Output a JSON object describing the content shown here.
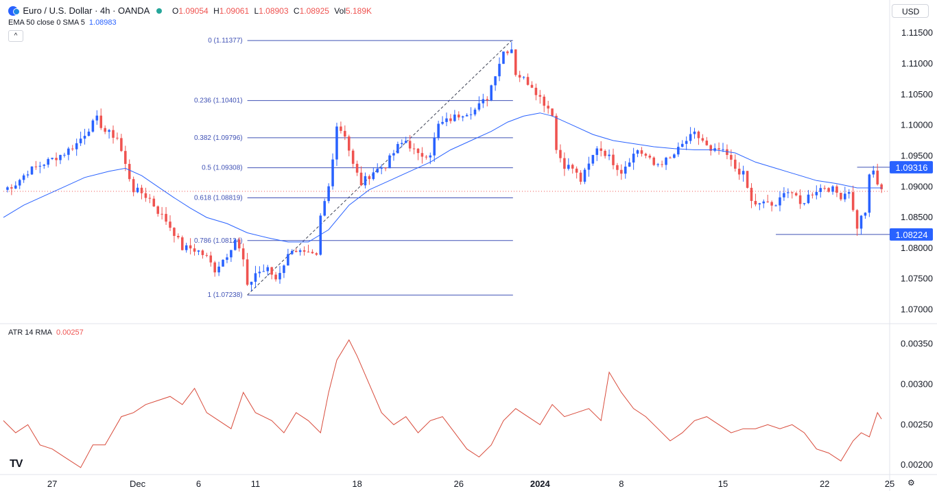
{
  "header": {
    "symbol_title": "Euro / U.S. Dollar · 4h · OANDA",
    "ohlc": [
      {
        "k": "O",
        "v": "1.09054"
      },
      {
        "k": "H",
        "v": "1.09061"
      },
      {
        "k": "L",
        "v": "1.08903"
      },
      {
        "k": "C",
        "v": "1.08925"
      },
      {
        "k": "Vol",
        "v": "5.189K"
      }
    ],
    "indicator_label": "EMA 50 close 0 SMA 5",
    "indicator_value": "1.08983",
    "collapse_glyph": "^",
    "currency": "USD"
  },
  "atr_panel": {
    "label": "ATR 14 RMA",
    "value": "0.00257"
  },
  "logo_text": "TV",
  "colors": {
    "up": "#2962ff",
    "down": "#ef5350",
    "ema": "#2962ff",
    "atr": "#d84a3a",
    "fib": "#3f51b5",
    "label_bg": "#2962ff"
  },
  "chart_data": {
    "type": "candlestick",
    "price_axis": {
      "range": [
        1.0685,
        1.1168
      ],
      "ticks": [
        "1.07000",
        "1.07500",
        "1.08000",
        "1.08500",
        "1.09000",
        "1.09500",
        "1.10000",
        "1.10500",
        "1.11000",
        "1.11500"
      ],
      "tick_values": [
        1.07,
        1.075,
        1.08,
        1.085,
        1.09,
        1.095,
        1.1,
        1.105,
        1.11,
        1.115
      ]
    },
    "time_axis": {
      "ticks": [
        "27",
        "Dec",
        "6",
        "11",
        "18",
        "26",
        "2024",
        "8",
        "15",
        "22",
        "25"
      ],
      "tick_index": [
        12,
        33,
        48,
        62,
        87,
        112,
        132,
        152,
        177,
        202,
        218
      ]
    },
    "candles": [],
    "close_path": [
      [
        0,
        1.0895
      ],
      [
        3,
        1.0905
      ],
      [
        6,
        1.0925
      ],
      [
        9,
        1.0935
      ],
      [
        12,
        1.0945
      ],
      [
        15,
        1.0955
      ],
      [
        18,
        1.097
      ],
      [
        21,
        1.0995
      ],
      [
        23,
        1.101
      ],
      [
        25,
        1.099
      ],
      [
        28,
        1.098
      ],
      [
        30,
        1.0935
      ],
      [
        32,
        1.0895
      ],
      [
        34,
        1.089
      ],
      [
        36,
        1.088
      ],
      [
        38,
        1.086
      ],
      [
        40,
        1.0845
      ],
      [
        42,
        1.0825
      ],
      [
        44,
        1.08
      ],
      [
        46,
        1.08
      ],
      [
        48,
        1.0795
      ],
      [
        50,
        1.0785
      ],
      [
        52,
        1.0765
      ],
      [
        55,
        1.079
      ],
      [
        57,
        1.0815
      ],
      [
        59,
        1.078
      ],
      [
        60,
        1.0735
      ],
      [
        62,
        1.076
      ],
      [
        65,
        1.0765
      ],
      [
        67,
        1.075
      ],
      [
        69,
        1.0775
      ],
      [
        71,
        1.08
      ],
      [
        74,
        1.079
      ],
      [
        77,
        1.0785
      ],
      [
        78,
        1.085
      ],
      [
        80,
        1.09
      ],
      [
        82,
        1.1
      ],
      [
        84,
        1.0985
      ],
      [
        86,
        1.0935
      ],
      [
        88,
        1.0905
      ],
      [
        91,
        1.0925
      ],
      [
        94,
        1.0935
      ],
      [
        97,
        1.0965
      ],
      [
        99,
        1.0975
      ],
      [
        102,
        1.095
      ],
      [
        105,
        1.0955
      ],
      [
        107,
        1.1
      ],
      [
        110,
        1.101
      ],
      [
        113,
        1.102
      ],
      [
        116,
        1.1025
      ],
      [
        119,
        1.1045
      ],
      [
        121,
        1.1085
      ],
      [
        123,
        1.112
      ],
      [
        125,
        1.1125
      ],
      [
        126,
        1.1085
      ],
      [
        128,
        1.1075
      ],
      [
        130,
        1.1065
      ],
      [
        132,
        1.1045
      ],
      [
        135,
        1.102
      ],
      [
        136,
        1.096
      ],
      [
        138,
        1.0935
      ],
      [
        140,
        1.093
      ],
      [
        142,
        1.091
      ],
      [
        144,
        1.0935
      ],
      [
        146,
        1.0965
      ],
      [
        148,
        1.0955
      ],
      [
        150,
        1.094
      ],
      [
        152,
        1.0925
      ],
      [
        154,
        1.0945
      ],
      [
        156,
        1.096
      ],
      [
        158,
        1.095
      ],
      [
        160,
        1.0935
      ],
      [
        162,
        1.094
      ],
      [
        164,
        1.0945
      ],
      [
        166,
        1.096
      ],
      [
        168,
        1.0975
      ],
      [
        170,
        1.0985
      ],
      [
        172,
        1.0975
      ],
      [
        174,
        1.0955
      ],
      [
        176,
        1.096
      ],
      [
        178,
        1.095
      ],
      [
        180,
        1.093
      ],
      [
        182,
        1.092
      ],
      [
        184,
        1.0875
      ],
      [
        186,
        1.087
      ],
      [
        188,
        1.0875
      ],
      [
        190,
        1.0865
      ],
      [
        192,
        1.0895
      ],
      [
        194,
        1.089
      ],
      [
        196,
        1.087
      ],
      [
        198,
        1.0885
      ],
      [
        200,
        1.0895
      ],
      [
        202,
        1.09
      ],
      [
        204,
        1.0895
      ],
      [
        206,
        1.0885
      ],
      [
        208,
        1.0895
      ],
      [
        209,
        1.086
      ],
      [
        210,
        1.0835
      ],
      [
        211,
        1.085
      ],
      [
        212,
        1.086
      ],
      [
        213,
        1.0915
      ],
      [
        214,
        1.0925
      ],
      [
        215,
        1.0905
      ],
      [
        216,
        1.0892
      ]
    ],
    "ema_path": [
      [
        0,
        1.085
      ],
      [
        5,
        1.087
      ],
      [
        10,
        1.0885
      ],
      [
        15,
        1.09
      ],
      [
        20,
        1.0915
      ],
      [
        26,
        1.0925
      ],
      [
        30,
        1.093
      ],
      [
        34,
        1.0918
      ],
      [
        38,
        1.09
      ],
      [
        42,
        1.0882
      ],
      [
        46,
        1.0865
      ],
      [
        50,
        1.085
      ],
      [
        55,
        1.084
      ],
      [
        60,
        1.0825
      ],
      [
        65,
        1.0817
      ],
      [
        70,
        1.081
      ],
      [
        75,
        1.081
      ],
      [
        80,
        1.083
      ],
      [
        85,
        1.087
      ],
      [
        90,
        1.0895
      ],
      [
        95,
        1.091
      ],
      [
        100,
        1.0925
      ],
      [
        105,
        1.094
      ],
      [
        110,
        1.096
      ],
      [
        115,
        1.0975
      ],
      [
        120,
        1.099
      ],
      [
        124,
        1.1005
      ],
      [
        128,
        1.1015
      ],
      [
        132,
        1.102
      ],
      [
        135,
        1.1015
      ],
      [
        140,
        1.1
      ],
      [
        145,
        1.0985
      ],
      [
        150,
        1.0975
      ],
      [
        155,
        1.097
      ],
      [
        160,
        1.0965
      ],
      [
        165,
        1.0962
      ],
      [
        170,
        1.096
      ],
      [
        175,
        1.096
      ],
      [
        180,
        1.0955
      ],
      [
        185,
        1.094
      ],
      [
        190,
        1.093
      ],
      [
        195,
        1.092
      ],
      [
        200,
        1.091
      ],
      [
        205,
        1.0905
      ],
      [
        210,
        1.0898
      ],
      [
        216,
        1.0898
      ]
    ],
    "fib_retracement": {
      "start_index": 60,
      "end_index": 125,
      "levels": [
        {
          "label": "0 (1.11377)",
          "value": 1.11377
        },
        {
          "label": "0.236 (1.10401)",
          "value": 1.10401
        },
        {
          "label": "0.382 (1.09796)",
          "value": 1.09796
        },
        {
          "label": "0.5 (1.09308)",
          "value": 1.09308
        },
        {
          "label": "0.618 (1.08819)",
          "value": 1.08819
        },
        {
          "label": "0.786 (1.08124)",
          "value": 1.08124
        },
        {
          "label": "1 (1.07238)",
          "value": 1.07238
        }
      ]
    },
    "horizontal_lines": [
      {
        "label": "1.09316",
        "value": 1.09316,
        "from_index": 210
      },
      {
        "label": "1.08224",
        "value": 1.08224,
        "from_index": 190
      }
    ],
    "current_price": 1.08925,
    "atr": {
      "range": [
        0.0019,
        0.0037
      ],
      "ticks": [
        "0.00200",
        "0.00250",
        "0.00300",
        "0.00350"
      ],
      "tick_values": [
        0.002,
        0.0025,
        0.003,
        0.0035
      ],
      "path": [
        [
          0,
          0.00255
        ],
        [
          3,
          0.0024
        ],
        [
          6,
          0.0025
        ],
        [
          9,
          0.00225
        ],
        [
          12,
          0.0022
        ],
        [
          15,
          0.0021
        ],
        [
          19,
          0.00197
        ],
        [
          22,
          0.00225
        ],
        [
          25,
          0.00225
        ],
        [
          29,
          0.0026
        ],
        [
          32,
          0.00265
        ],
        [
          35,
          0.00275
        ],
        [
          38,
          0.0028
        ],
        [
          41,
          0.00285
        ],
        [
          44,
          0.00275
        ],
        [
          47,
          0.00295
        ],
        [
          50,
          0.00265
        ],
        [
          53,
          0.00255
        ],
        [
          56,
          0.00245
        ],
        [
          59,
          0.0029
        ],
        [
          62,
          0.00265
        ],
        [
          66,
          0.00255
        ],
        [
          69,
          0.0024
        ],
        [
          72,
          0.00265
        ],
        [
          75,
          0.00255
        ],
        [
          78,
          0.0024
        ],
        [
          80,
          0.0029
        ],
        [
          82,
          0.0033
        ],
        [
          85,
          0.00355
        ],
        [
          87,
          0.00335
        ],
        [
          90,
          0.003
        ],
        [
          93,
          0.00265
        ],
        [
          96,
          0.0025
        ],
        [
          99,
          0.0026
        ],
        [
          102,
          0.0024
        ],
        [
          105,
          0.00255
        ],
        [
          108,
          0.0026
        ],
        [
          111,
          0.0024
        ],
        [
          114,
          0.0022
        ],
        [
          117,
          0.0021
        ],
        [
          120,
          0.00225
        ],
        [
          123,
          0.00255
        ],
        [
          126,
          0.0027
        ],
        [
          129,
          0.0026
        ],
        [
          132,
          0.0025
        ],
        [
          135,
          0.00275
        ],
        [
          138,
          0.0026
        ],
        [
          141,
          0.00265
        ],
        [
          144,
          0.0027
        ],
        [
          147,
          0.00255
        ],
        [
          149,
          0.00315
        ],
        [
          152,
          0.0029
        ],
        [
          155,
          0.0027
        ],
        [
          158,
          0.0026
        ],
        [
          161,
          0.00245
        ],
        [
          164,
          0.0023
        ],
        [
          167,
          0.0024
        ],
        [
          170,
          0.00255
        ],
        [
          173,
          0.0026
        ],
        [
          176,
          0.0025
        ],
        [
          179,
          0.0024
        ],
        [
          182,
          0.00245
        ],
        [
          185,
          0.00245
        ],
        [
          188,
          0.0025
        ],
        [
          191,
          0.00245
        ],
        [
          194,
          0.0025
        ],
        [
          197,
          0.0024
        ],
        [
          200,
          0.0022
        ],
        [
          203,
          0.00215
        ],
        [
          206,
          0.00205
        ],
        [
          209,
          0.0023
        ],
        [
          211,
          0.0024
        ],
        [
          213,
          0.00235
        ],
        [
          215,
          0.00265
        ],
        [
          216,
          0.00257
        ]
      ]
    }
  }
}
